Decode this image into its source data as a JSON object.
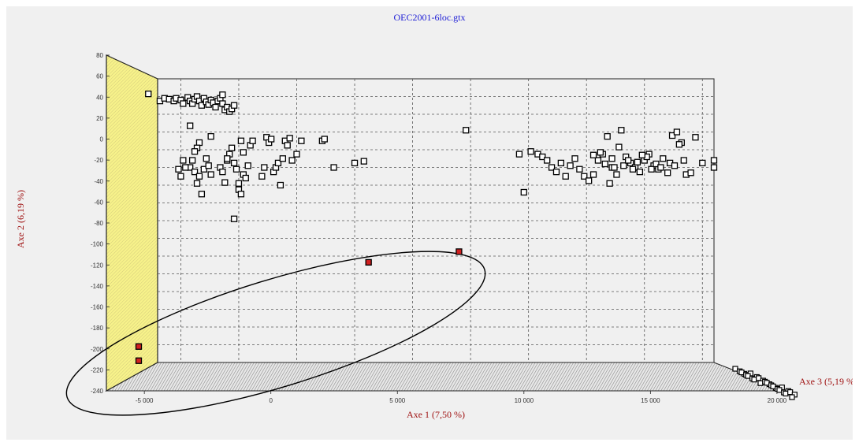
{
  "chart_data": {
    "type": "scatter",
    "title": "OEC2001-6loc.gtx",
    "xlabel": "Axe 1 (7,50 %)",
    "ylabel": "Axe 2 (6,19 %)",
    "zlabel": "Axe 3 (5,19 %)",
    "xlim": [
      -6000,
      18000
    ],
    "ylim": [
      -240,
      80
    ],
    "xticks": [
      -5000,
      0,
      5000,
      10000,
      15000,
      20000
    ],
    "xtick_labels": [
      "-5 000",
      "0",
      "5 000",
      "10 000",
      "15 000",
      "20 000"
    ],
    "yticks": [
      80,
      60,
      40,
      20,
      0,
      -20,
      -40,
      -60,
      -80,
      -100,
      -120,
      -140,
      -160,
      -180,
      -200,
      -220,
      -240
    ],
    "yticks_labeled": true,
    "grid": true,
    "colors": {
      "points": "#ffffff",
      "highlighted": "#d22020",
      "left_wall": "#f7f28a",
      "floor_hatch": "#9a9a9a",
      "title": "#1f1fd6",
      "axis_labels": "#a01414"
    },
    "series": [
      {
        "points": [
          [
            -6400,
            63
          ],
          [
            -5900,
            55
          ],
          [
            -5700,
            58
          ],
          [
            -5500,
            57
          ],
          [
            -5300,
            55
          ],
          [
            -5200,
            58
          ],
          [
            -5000,
            56
          ],
          [
            -4900,
            52
          ],
          [
            -4700,
            59
          ],
          [
            -4600,
            55
          ],
          [
            -4500,
            52
          ],
          [
            -4400,
            57
          ],
          [
            -4300,
            60
          ],
          [
            -4200,
            55
          ],
          [
            -4100,
            50
          ],
          [
            -4000,
            58
          ],
          [
            -3900,
            54
          ],
          [
            -3800,
            51
          ],
          [
            -3700,
            56
          ],
          [
            -3600,
            53
          ],
          [
            -3500,
            48
          ],
          [
            -3400,
            55
          ],
          [
            -3300,
            58
          ],
          [
            -3200,
            52
          ],
          [
            -3100,
            45
          ],
          [
            -3000,
            48
          ],
          [
            -3200,
            62
          ],
          [
            -2900,
            43
          ],
          [
            -2800,
            46
          ],
          [
            -2700,
            50
          ],
          [
            -4600,
            27
          ],
          [
            -3700,
            15
          ],
          [
            -4200,
            8
          ],
          [
            -4300,
            2
          ],
          [
            -4400,
            -2
          ],
          [
            -4500,
            -12
          ],
          [
            -4600,
            -20
          ],
          [
            -4400,
            -25
          ],
          [
            -4200,
            -30
          ],
          [
            -4300,
            -38
          ],
          [
            -4100,
            -50
          ],
          [
            -4000,
            -22
          ],
          [
            -3900,
            -10
          ],
          [
            -3800,
            -18
          ],
          [
            -3700,
            -28
          ],
          [
            -4800,
            -20
          ],
          [
            -5000,
            -30
          ],
          [
            -5100,
            -22
          ],
          [
            -4900,
            -12
          ],
          [
            -3300,
            -20
          ],
          [
            -3200,
            -25
          ],
          [
            -3100,
            -37
          ],
          [
            -3000,
            -12
          ],
          [
            -2900,
            -5
          ],
          [
            -2800,
            2
          ],
          [
            -2700,
            -15
          ],
          [
            -2600,
            -22
          ],
          [
            -2500,
            -45
          ],
          [
            -2400,
            -50
          ],
          [
            -2300,
            -28
          ],
          [
            -2200,
            -32
          ],
          [
            -2100,
            -18
          ],
          [
            -2000,
            5
          ],
          [
            -1900,
            10
          ],
          [
            -2400,
            10
          ],
          [
            -2300,
            -3
          ],
          [
            -2700,
            -78
          ],
          [
            -2500,
            -38
          ],
          [
            -3000,
            -10
          ],
          [
            -1500,
            -30
          ],
          [
            -1400,
            -20
          ],
          [
            -1300,
            14
          ],
          [
            -1200,
            8
          ],
          [
            -1100,
            12
          ],
          [
            -1000,
            -25
          ],
          [
            -900,
            -20
          ],
          [
            -800,
            -15
          ],
          [
            -700,
            -40
          ],
          [
            -600,
            -10
          ],
          [
            -500,
            10
          ],
          [
            -400,
            5
          ],
          [
            -300,
            13
          ],
          [
            -200,
            -12
          ],
          [
            0,
            -5
          ],
          [
            200,
            10
          ],
          [
            1100,
            10
          ],
          [
            1200,
            12
          ],
          [
            1600,
            -20
          ],
          [
            2500,
            -15
          ],
          [
            2900,
            -13
          ],
          [
            7300,
            22
          ],
          [
            9600,
            -5
          ],
          [
            9800,
            -48
          ],
          [
            10100,
            -2
          ],
          [
            10400,
            -5
          ],
          [
            10600,
            -8
          ],
          [
            10800,
            -12
          ],
          [
            11000,
            -20
          ],
          [
            11200,
            -25
          ],
          [
            11400,
            -15
          ],
          [
            11600,
            -30
          ],
          [
            11800,
            -18
          ],
          [
            12000,
            -10
          ],
          [
            12200,
            -22
          ],
          [
            12400,
            -30
          ],
          [
            12600,
            -35
          ],
          [
            12800,
            -28
          ],
          [
            13000,
            -12
          ],
          [
            13200,
            -5
          ],
          [
            13400,
            15
          ],
          [
            13600,
            -20
          ],
          [
            13800,
            -28
          ],
          [
            14000,
            22
          ],
          [
            14200,
            -8
          ],
          [
            14400,
            -15
          ],
          [
            14600,
            -20
          ],
          [
            14800,
            -25
          ],
          [
            15000,
            -12
          ],
          [
            15200,
            -5
          ],
          [
            15400,
            -18
          ],
          [
            15600,
            -22
          ],
          [
            15800,
            -10
          ],
          [
            16000,
            -26
          ],
          [
            16200,
            16
          ],
          [
            16400,
            20
          ],
          [
            16600,
            8
          ],
          [
            16800,
            -28
          ],
          [
            17000,
            -26
          ],
          [
            17200,
            14
          ],
          [
            17500,
            -15
          ],
          [
            18000,
            -12
          ],
          [
            18000,
            -20
          ],
          [
            12800,
            -6
          ],
          [
            13100,
            -3
          ],
          [
            13300,
            -16
          ],
          [
            13600,
            -10
          ],
          [
            13900,
            3
          ],
          [
            14100,
            -18
          ],
          [
            14300,
            -12
          ],
          [
            14700,
            -14
          ],
          [
            15100,
            -8
          ],
          [
            15300,
            -22
          ],
          [
            15500,
            -16
          ],
          [
            15700,
            -20
          ],
          [
            16100,
            -15
          ],
          [
            16300,
            -18
          ],
          [
            16500,
            6
          ],
          [
            16700,
            -12
          ],
          [
            13500,
            -38
          ],
          [
            13700,
            -20
          ],
          [
            14500,
            -22
          ],
          [
            14900,
            -6
          ]
        ]
      },
      {
        "highlighted": true,
        "points": [
          [
            3100,
            -127
          ],
          [
            7000,
            -115
          ],
          [
            -6000,
            -222
          ],
          [
            -6000,
            -238
          ]
        ]
      }
    ]
  }
}
